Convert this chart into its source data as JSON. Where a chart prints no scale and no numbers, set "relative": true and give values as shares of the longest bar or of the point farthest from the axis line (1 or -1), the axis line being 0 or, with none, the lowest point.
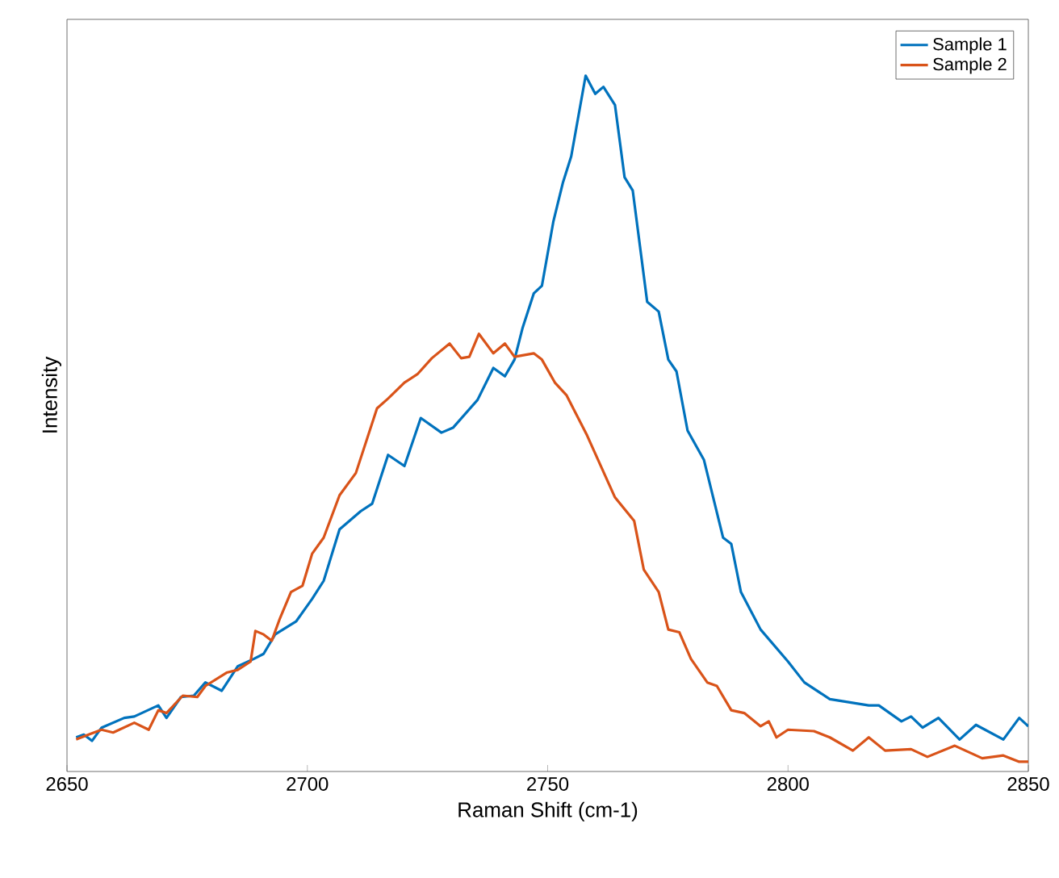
{
  "chart_data": {
    "type": "line",
    "relative": true,
    "xlabel": "Raman Shift (cm-1)",
    "ylabel": "Intensity",
    "xlim": [
      2650,
      2850
    ],
    "xticks": [
      2650,
      2700,
      2750,
      2800,
      2850
    ],
    "legend": "top right",
    "series": [
      {
        "name": "Sample 1",
        "color": "#0072bd",
        "x": [
          2651.9,
          2653.5,
          2655.2,
          2657.2,
          2661.9,
          2664.0,
          2669.0,
          2670.7,
          2673.7,
          2676.4,
          2678.8,
          2682.2,
          2685.5,
          2688.9,
          2690.9,
          2693.3,
          2697.7,
          2701.0,
          2703.4,
          2706.7,
          2711.1,
          2713.5,
          2716.8,
          2720.2,
          2723.6,
          2727.9,
          2730.3,
          2735.4,
          2738.7,
          2741.1,
          2743.1,
          2744.8,
          2747.1,
          2748.8,
          2751.2,
          2753.2,
          2754.9,
          2757.9,
          2759.9,
          2761.6,
          2764.0,
          2766.0,
          2767.7,
          2770.7,
          2773.1,
          2775.1,
          2776.8,
          2779.1,
          2782.5,
          2786.5,
          2788.2,
          2790.2,
          2794.3,
          2800.0,
          2803.4,
          2808.7,
          2816.8,
          2818.9,
          2823.6,
          2825.6,
          2828.0,
          2831.3,
          2835.7,
          2839.1,
          2844.8,
          2848.1,
          2850.0
        ],
        "values": [
          0.049,
          0.053,
          0.044,
          0.063,
          0.077,
          0.079,
          0.095,
          0.077,
          0.107,
          0.109,
          0.128,
          0.116,
          0.151,
          0.162,
          0.169,
          0.197,
          0.216,
          0.248,
          0.274,
          0.348,
          0.374,
          0.385,
          0.455,
          0.439,
          0.508,
          0.487,
          0.494,
          0.534,
          0.58,
          0.568,
          0.592,
          0.638,
          0.687,
          0.698,
          0.791,
          0.847,
          0.884,
          1.0,
          0.974,
          0.984,
          0.958,
          0.854,
          0.835,
          0.675,
          0.661,
          0.592,
          0.575,
          0.49,
          0.448,
          0.336,
          0.327,
          0.258,
          0.204,
          0.158,
          0.128,
          0.104,
          0.095,
          0.095,
          0.072,
          0.079,
          0.063,
          0.077,
          0.046,
          0.067,
          0.046,
          0.077,
          0.065
        ]
      },
      {
        "name": "Sample 2",
        "color": "#d95319",
        "x": [
          2651.9,
          2654.5,
          2657.2,
          2659.6,
          2664.0,
          2667.0,
          2669.0,
          2670.7,
          2674.1,
          2677.1,
          2678.8,
          2683.2,
          2685.5,
          2688.2,
          2689.2,
          2690.9,
          2692.6,
          2694.3,
          2696.6,
          2699.0,
          2701.0,
          2703.4,
          2706.7,
          2710.1,
          2714.5,
          2716.8,
          2720.2,
          2722.9,
          2725.9,
          2729.6,
          2732.0,
          2733.7,
          2735.7,
          2738.7,
          2741.1,
          2743.1,
          2747.1,
          2748.8,
          2751.5,
          2753.9,
          2758.2,
          2764.0,
          2768.0,
          2770.0,
          2773.1,
          2775.1,
          2777.4,
          2779.8,
          2783.2,
          2785.2,
          2788.2,
          2790.9,
          2794.3,
          2796.0,
          2797.6,
          2800.0,
          2805.4,
          2808.7,
          2813.5,
          2816.8,
          2820.2,
          2825.6,
          2829.0,
          2834.7,
          2840.4,
          2844.8,
          2848.1,
          2850.0
        ],
        "values": [
          0.046,
          0.053,
          0.06,
          0.056,
          0.07,
          0.06,
          0.088,
          0.084,
          0.109,
          0.107,
          0.123,
          0.142,
          0.146,
          0.158,
          0.202,
          0.197,
          0.188,
          0.22,
          0.258,
          0.267,
          0.313,
          0.336,
          0.397,
          0.429,
          0.522,
          0.536,
          0.559,
          0.571,
          0.594,
          0.615,
          0.594,
          0.596,
          0.629,
          0.601,
          0.615,
          0.596,
          0.601,
          0.592,
          0.559,
          0.541,
          0.483,
          0.394,
          0.36,
          0.29,
          0.258,
          0.204,
          0.2,
          0.162,
          0.128,
          0.123,
          0.088,
          0.084,
          0.065,
          0.072,
          0.049,
          0.06,
          0.058,
          0.049,
          0.03,
          0.049,
          0.03,
          0.032,
          0.021,
          0.037,
          0.019,
          0.023,
          0.014,
          0.014
        ]
      }
    ]
  }
}
